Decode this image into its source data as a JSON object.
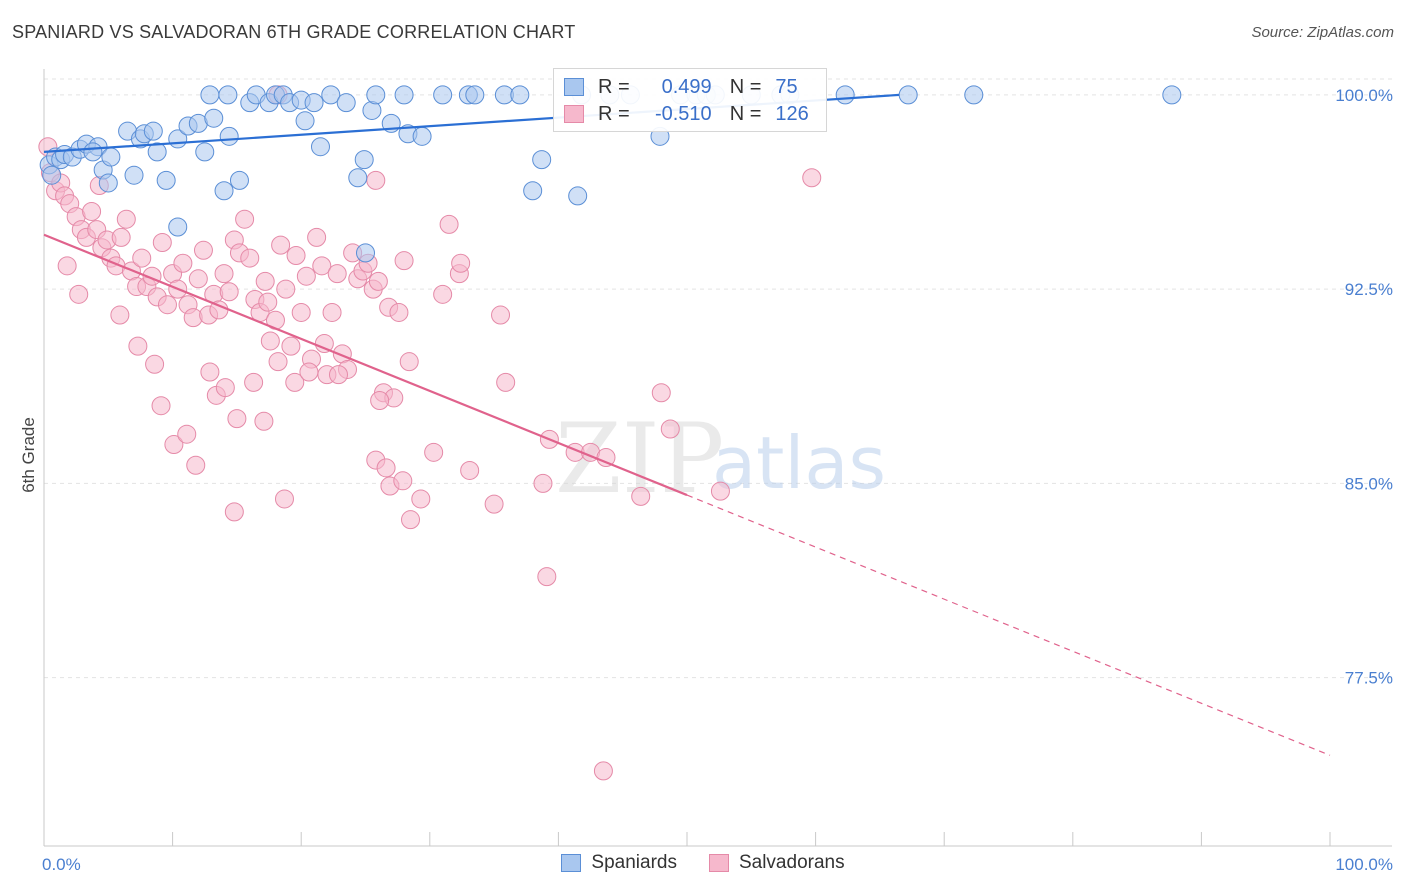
{
  "header": {
    "title": "SPANIARD VS SALVADORAN 6TH GRADE CORRELATION CHART",
    "source": "Source: ZipAtlas.com"
  },
  "colors": {
    "blue_fill": "#a9c7ef",
    "blue_stroke": "#5b8fd6",
    "blue_line": "#2b6fd4",
    "pink_fill": "#f6b8cc",
    "pink_stroke": "#e58aa8",
    "pink_line": "#e0628c",
    "grid": "#e3e3e3",
    "axis_text": "#4a7fd0"
  },
  "legend": {
    "rows": [
      {
        "r_label": "R =",
        "r_value": "0.499",
        "n_label": "N =",
        "n_value": "75"
      },
      {
        "r_label": "R =",
        "r_value": "-0.510",
        "n_label": "N =",
        "n_value": "126"
      }
    ]
  },
  "bottom_legend": {
    "items": [
      "Spaniards",
      "Salvadorans"
    ]
  },
  "watermark": {
    "zip": "ZIP",
    "atlas": "atlas"
  },
  "chart_data": {
    "type": "scatter",
    "title": "SPANIARD VS SALVADORAN 6TH GRADE CORRELATION CHART",
    "xlabel": "",
    "ylabel": "6th Grade",
    "xlim": [
      0,
      100
    ],
    "ylim": [
      71,
      101
    ],
    "x_tick_labels": [
      "0.0%",
      "100.0%"
    ],
    "y_ticks": [
      100.0,
      92.5,
      85.0,
      77.5
    ],
    "y_tick_labels": [
      "100.0%",
      "92.5%",
      "85.0%",
      "77.5%"
    ],
    "grid": true,
    "legend_position": "top-center",
    "series": [
      {
        "name": "Spaniards",
        "r": 0.499,
        "n": 75,
        "trend": {
          "x0": 0,
          "y0": 97.8,
          "x1": 66.5,
          "y1": 100.0,
          "solid_to": 66.5
        },
        "points": [
          [
            0.4,
            97.3
          ],
          [
            0.6,
            96.9
          ],
          [
            0.9,
            97.6
          ],
          [
            1.3,
            97.5
          ],
          [
            1.6,
            97.7
          ],
          [
            2.2,
            97.6
          ],
          [
            2.8,
            97.9
          ],
          [
            3.3,
            98.1
          ],
          [
            4.2,
            98.0
          ],
          [
            4.6,
            97.1
          ],
          [
            5.2,
            97.6
          ],
          [
            5.0,
            96.6
          ],
          [
            6.5,
            98.6
          ],
          [
            7.5,
            98.3
          ],
          [
            7.8,
            98.5
          ],
          [
            8.5,
            98.6
          ],
          [
            8.8,
            97.8
          ],
          [
            7.0,
            96.9
          ],
          [
            9.5,
            96.7
          ],
          [
            10.4,
            98.3
          ],
          [
            11.2,
            98.8
          ],
          [
            12.0,
            98.9
          ],
          [
            12.5,
            97.8
          ],
          [
            13.2,
            99.1
          ],
          [
            14.4,
            98.4
          ],
          [
            14.0,
            96.3
          ],
          [
            15.2,
            96.7
          ],
          [
            16.0,
            99.7
          ],
          [
            16.5,
            100.0
          ],
          [
            17.5,
            99.7
          ],
          [
            18.0,
            100.0
          ],
          [
            18.6,
            100.0
          ],
          [
            19.1,
            99.7
          ],
          [
            20.0,
            99.8
          ],
          [
            21.0,
            99.7
          ],
          [
            20.3,
            99.0
          ],
          [
            21.5,
            98.0
          ],
          [
            22.3,
            100.0
          ],
          [
            23.5,
            99.7
          ],
          [
            24.4,
            96.8
          ],
          [
            24.9,
            97.5
          ],
          [
            25.5,
            99.4
          ],
          [
            25.8,
            100.0
          ],
          [
            27.0,
            98.9
          ],
          [
            28.0,
            100.0
          ],
          [
            28.3,
            98.5
          ],
          [
            29.4,
            98.4
          ],
          [
            25.0,
            93.9
          ],
          [
            12.9,
            100.0
          ],
          [
            14.3,
            100.0
          ],
          [
            31.0,
            100.0
          ],
          [
            33.0,
            100.0
          ],
          [
            35.8,
            100.0
          ],
          [
            33.5,
            100.0
          ],
          [
            37.0,
            100.0
          ],
          [
            38.0,
            96.3
          ],
          [
            38.7,
            97.5
          ],
          [
            41.8,
            100.0
          ],
          [
            44.0,
            100.0
          ],
          [
            45.6,
            100.0
          ],
          [
            49.5,
            100.0
          ],
          [
            50.7,
            100.0
          ],
          [
            51.5,
            100.0
          ],
          [
            52.2,
            100.0
          ],
          [
            47.9,
            98.4
          ],
          [
            55.0,
            100.0
          ],
          [
            57.3,
            100.0
          ],
          [
            58.0,
            100.0
          ],
          [
            62.3,
            100.0
          ],
          [
            67.2,
            100.0
          ],
          [
            72.3,
            100.0
          ],
          [
            87.7,
            100.0
          ],
          [
            41.5,
            96.1
          ],
          [
            10.4,
            94.9
          ],
          [
            3.8,
            97.8
          ]
        ]
      },
      {
        "name": "Salvadorans",
        "r": -0.51,
        "n": 126,
        "trend": {
          "x0": 0,
          "y0": 94.6,
          "x1": 100,
          "y1": 74.5,
          "solid_to": 50.0
        },
        "points": [
          [
            0.3,
            98.0
          ],
          [
            0.5,
            97.0
          ],
          [
            0.9,
            96.3
          ],
          [
            1.3,
            96.6
          ],
          [
            1.6,
            96.1
          ],
          [
            2.0,
            95.8
          ],
          [
            2.5,
            95.3
          ],
          [
            2.9,
            94.8
          ],
          [
            3.3,
            94.5
          ],
          [
            3.7,
            95.5
          ],
          [
            4.1,
            94.8
          ],
          [
            4.5,
            94.1
          ],
          [
            4.9,
            94.4
          ],
          [
            5.2,
            93.7
          ],
          [
            5.6,
            93.4
          ],
          [
            6.0,
            94.5
          ],
          [
            6.4,
            95.2
          ],
          [
            6.8,
            93.2
          ],
          [
            7.2,
            92.6
          ],
          [
            7.6,
            93.7
          ],
          [
            8.0,
            92.6
          ],
          [
            8.4,
            93.0
          ],
          [
            8.8,
            92.2
          ],
          [
            9.2,
            94.3
          ],
          [
            9.6,
            91.9
          ],
          [
            10.0,
            93.1
          ],
          [
            10.4,
            92.5
          ],
          [
            10.8,
            93.5
          ],
          [
            11.2,
            91.9
          ],
          [
            11.6,
            91.4
          ],
          [
            12.0,
            92.9
          ],
          [
            12.4,
            94.0
          ],
          [
            12.8,
            91.5
          ],
          [
            13.2,
            92.3
          ],
          [
            13.6,
            91.7
          ],
          [
            14.0,
            93.1
          ],
          [
            14.4,
            92.4
          ],
          [
            14.8,
            94.4
          ],
          [
            15.2,
            93.9
          ],
          [
            15.6,
            95.2
          ],
          [
            16.0,
            93.7
          ],
          [
            16.4,
            92.1
          ],
          [
            16.8,
            91.6
          ],
          [
            17.2,
            92.8
          ],
          [
            17.6,
            90.5
          ],
          [
            18.0,
            91.3
          ],
          [
            18.4,
            94.2
          ],
          [
            18.8,
            92.5
          ],
          [
            19.2,
            90.3
          ],
          [
            19.6,
            93.8
          ],
          [
            20.0,
            91.6
          ],
          [
            20.4,
            93.0
          ],
          [
            20.8,
            89.8
          ],
          [
            21.2,
            94.5
          ],
          [
            21.6,
            93.4
          ],
          [
            22.0,
            89.2
          ],
          [
            22.4,
            91.6
          ],
          [
            22.8,
            93.1
          ],
          [
            23.2,
            90.0
          ],
          [
            23.6,
            89.4
          ],
          [
            24.0,
            93.9
          ],
          [
            24.4,
            92.9
          ],
          [
            24.8,
            93.2
          ],
          [
            25.2,
            93.5
          ],
          [
            25.6,
            92.5
          ],
          [
            26.0,
            92.8
          ],
          [
            26.4,
            88.5
          ],
          [
            26.8,
            91.8
          ],
          [
            27.2,
            88.3
          ],
          [
            27.6,
            91.6
          ],
          [
            28.0,
            93.6
          ],
          [
            28.4,
            89.7
          ],
          [
            1.8,
            93.4
          ],
          [
            2.7,
            92.3
          ],
          [
            5.9,
            91.5
          ],
          [
            7.3,
            90.3
          ],
          [
            8.6,
            89.6
          ],
          [
            9.1,
            88.0
          ],
          [
            10.1,
            86.5
          ],
          [
            11.1,
            86.9
          ],
          [
            11.8,
            85.7
          ],
          [
            13.4,
            88.4
          ],
          [
            12.9,
            89.3
          ],
          [
            14.1,
            88.7
          ],
          [
            15.0,
            87.5
          ],
          [
            16.3,
            88.9
          ],
          [
            17.1,
            87.4
          ],
          [
            18.2,
            89.7
          ],
          [
            19.5,
            88.9
          ],
          [
            20.6,
            89.3
          ],
          [
            21.8,
            90.4
          ],
          [
            22.9,
            89.2
          ],
          [
            25.8,
            85.9
          ],
          [
            26.9,
            84.9
          ],
          [
            27.9,
            85.1
          ],
          [
            28.5,
            83.6
          ],
          [
            30.3,
            86.2
          ],
          [
            31.0,
            92.3
          ],
          [
            32.3,
            93.1
          ],
          [
            33.1,
            85.5
          ],
          [
            35.5,
            91.5
          ],
          [
            35.9,
            88.9
          ],
          [
            38.8,
            85.0
          ],
          [
            39.3,
            86.7
          ],
          [
            41.3,
            86.2
          ],
          [
            42.5,
            86.2
          ],
          [
            43.7,
            86.0
          ],
          [
            46.4,
            84.5
          ],
          [
            48.0,
            88.5
          ],
          [
            39.1,
            81.4
          ],
          [
            48.7,
            87.1
          ],
          [
            52.6,
            84.7
          ],
          [
            14.8,
            83.9
          ],
          [
            18.7,
            84.4
          ],
          [
            26.6,
            85.6
          ],
          [
            29.3,
            84.4
          ],
          [
            31.5,
            95.0
          ],
          [
            32.4,
            93.5
          ],
          [
            26.1,
            88.2
          ],
          [
            35.0,
            84.2
          ],
          [
            43.5,
            73.9
          ],
          [
            25.8,
            96.7
          ],
          [
            18.2,
            100.0
          ],
          [
            59.7,
            96.8
          ],
          [
            4.3,
            96.5
          ],
          [
            17.4,
            92.0
          ]
        ]
      }
    ]
  }
}
